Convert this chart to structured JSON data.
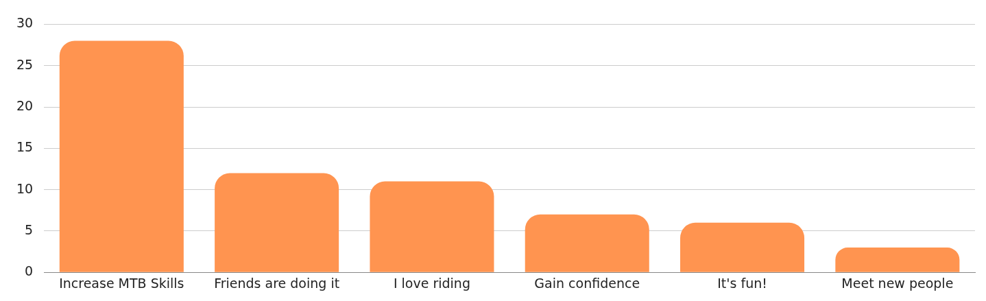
{
  "chart_data": {
    "type": "bar",
    "categories": [
      "Increase MTB Skills",
      "Friends are doing it",
      "I love riding",
      "Gain confidence",
      "It's fun!",
      "Meet new people"
    ],
    "values": [
      28,
      12,
      11,
      7,
      6,
      3
    ],
    "color": "#ff9450",
    "ylim": [
      0,
      30
    ],
    "yticks": [
      0,
      5,
      10,
      15,
      20,
      25,
      30
    ],
    "grid": "y",
    "legend": false
  }
}
